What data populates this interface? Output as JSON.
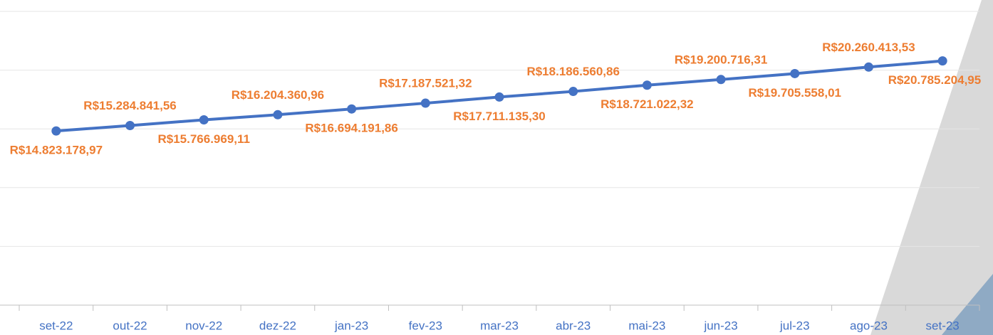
{
  "chart_data": {
    "type": "line",
    "categories": [
      "set-22",
      "out-22",
      "nov-22",
      "dez-22",
      "jan-23",
      "fev-23",
      "mar-23",
      "abr-23",
      "mai-23",
      "jun-23",
      "jul-23",
      "ago-23",
      "set-23"
    ],
    "series": [
      {
        "color": "#4472c4",
        "values": [
          14823178.97,
          15284841.56,
          15766969.11,
          16204360.96,
          16694191.86,
          17187521.32,
          17711135.3,
          18186560.86,
          18721022.32,
          19200716.31,
          19705558.01,
          20260413.53,
          20785204.95
        ],
        "value_labels": [
          "R$14.823.178,97",
          "R$15.284.841,56",
          "R$15.766.969,11",
          "R$16.204.360,96",
          "R$16.694.191,86",
          "R$17.187.521,32",
          "R$17.711.135,30",
          "R$18.186.560,86",
          "R$18.721.022,32",
          "R$19.200.716,31",
          "R$19.705.558,01",
          "R$20.260.413,53",
          "R$20.785.204,95"
        ]
      }
    ],
    "label_color": "#ed7d31",
    "ylim": [
      0,
      25000000
    ],
    "yticks": [
      0,
      5000000,
      10000000,
      15000000,
      20000000,
      25000000
    ],
    "grid": true
  }
}
